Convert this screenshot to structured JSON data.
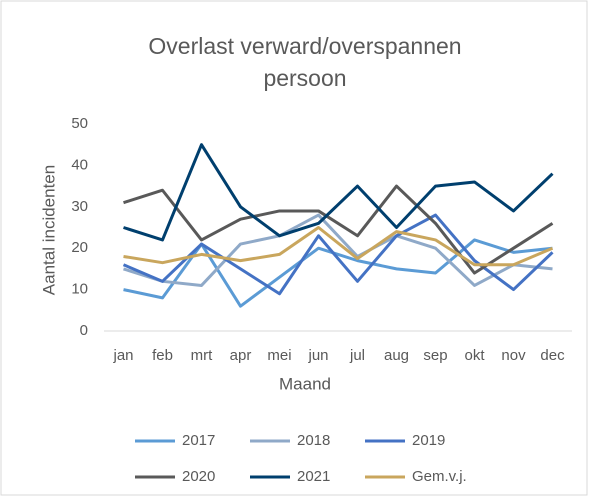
{
  "chart_data": {
    "type": "line",
    "title": [
      "Overlast verward/overspannen",
      "persoon"
    ],
    "x_label": "Maand",
    "y_label": "Aantal incidenten",
    "categories": [
      "jan",
      "feb",
      "mrt",
      "apr",
      "mei",
      "jun",
      "jul",
      "aug",
      "sep",
      "okt",
      "nov",
      "dec"
    ],
    "ylim": [
      0,
      50
    ],
    "yticks": [
      0,
      10,
      20,
      30,
      40,
      50
    ],
    "series": [
      {
        "name": "2017",
        "color": "#5b9bd5",
        "values": [
          10,
          8,
          21,
          6,
          13,
          20,
          17,
          15,
          14,
          22,
          19,
          20
        ]
      },
      {
        "name": "2018",
        "color": "#8fa9c8",
        "values": [
          15,
          12,
          11,
          21,
          23,
          28,
          18,
          23,
          20,
          11,
          16,
          15
        ]
      },
      {
        "name": "2019",
        "color": "#4472c4",
        "values": [
          16,
          12,
          21,
          15,
          9,
          23,
          12,
          23,
          28,
          17,
          10,
          19
        ]
      },
      {
        "name": "2020",
        "color": "#595959",
        "values": [
          31,
          34,
          22,
          27,
          29,
          29,
          23,
          35,
          26,
          14,
          20,
          26
        ]
      },
      {
        "name": "2021",
        "color": "#003f6e",
        "values": [
          25,
          22,
          45,
          30,
          23,
          26,
          35,
          25,
          35,
          36,
          29,
          38
        ]
      },
      {
        "name": "Gem.v.j.",
        "color": "#c9a65d",
        "values": [
          18,
          16.5,
          18.5,
          17,
          18.5,
          25,
          17.5,
          24,
          22,
          16,
          16,
          20
        ]
      }
    ]
  }
}
